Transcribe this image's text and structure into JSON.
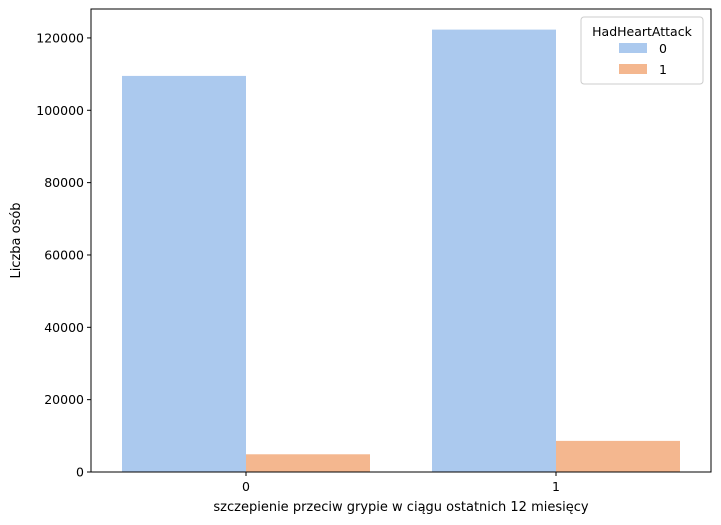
{
  "chart_data": {
    "type": "bar",
    "title": "",
    "xlabel": "szczepienie przeciw grypie w ciągu ostatnich 12 miesięcy",
    "ylabel": "Liczba osób",
    "categories": [
      "0",
      "1"
    ],
    "series": [
      {
        "name": "0",
        "color": "#abc9ee",
        "values": [
          109500,
          122300
        ]
      },
      {
        "name": "1",
        "color": "#f4b78f",
        "values": [
          4900,
          8600
        ]
      }
    ],
    "ylim": [
      0,
      128000
    ],
    "yticks": [
      0,
      20000,
      40000,
      60000,
      80000,
      100000,
      120000
    ],
    "grid": false,
    "legend": {
      "title": "HadHeartAttack",
      "placement": "top-right"
    }
  }
}
